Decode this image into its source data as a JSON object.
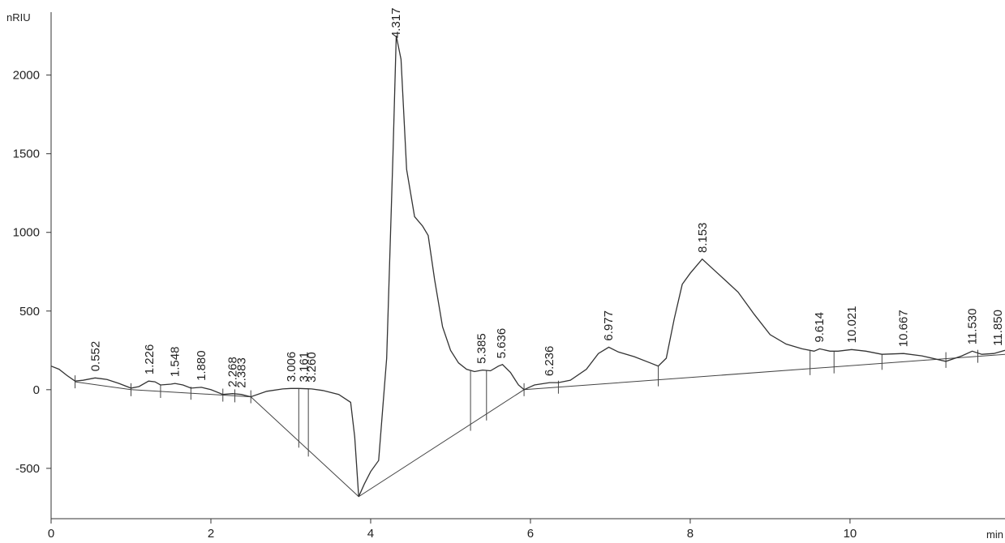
{
  "chart_data": {
    "type": "line",
    "y_label": "nRIU",
    "x_label": "min",
    "xlim": [
      0,
      11.94
    ],
    "ylim": [
      -820,
      2400
    ],
    "xticks": [
      0,
      2,
      4,
      6,
      8,
      10
    ],
    "yticks": [
      -500,
      0,
      500,
      1000,
      1500,
      2000
    ],
    "color": "#333333",
    "x": [
      0,
      0.1,
      0.2,
      0.3,
      0.4,
      0.55,
      0.7,
      0.85,
      1.0,
      1.1,
      1.22,
      1.3,
      1.37,
      1.5,
      1.55,
      1.65,
      1.75,
      1.88,
      2.0,
      2.15,
      2.27,
      2.38,
      2.5,
      2.7,
      2.9,
      3.0,
      3.1,
      3.26,
      3.4,
      3.6,
      3.75,
      3.8,
      3.85,
      3.92,
      4.0,
      4.1,
      4.2,
      4.28,
      4.32,
      4.38,
      4.45,
      4.55,
      4.65,
      4.72,
      4.8,
      4.9,
      5.0,
      5.1,
      5.2,
      5.3,
      5.4,
      5.5,
      5.6,
      5.65,
      5.75,
      5.85,
      5.92,
      6.05,
      6.24,
      6.35,
      6.5,
      6.7,
      6.85,
      6.98,
      7.1,
      7.3,
      7.5,
      7.6,
      7.7,
      7.8,
      7.9,
      8.0,
      8.15,
      8.3,
      8.45,
      8.6,
      8.8,
      9.0,
      9.2,
      9.4,
      9.55,
      9.62,
      9.75,
      9.85,
      10.02,
      10.2,
      10.4,
      10.67,
      10.9,
      11.2,
      11.4,
      11.53,
      11.65,
      11.8,
      11.94
    ],
    "values": [
      150,
      130,
      90,
      55,
      60,
      75,
      65,
      40,
      10,
      20,
      55,
      50,
      30,
      35,
      40,
      30,
      10,
      15,
      0,
      -30,
      -25,
      -30,
      -45,
      -10,
      5,
      8,
      8,
      5,
      -5,
      -30,
      -80,
      -300,
      -680,
      -600,
      -520,
      -450,
      200,
      1500,
      2250,
      2100,
      1400,
      1100,
      1040,
      980,
      700,
      400,
      250,
      170,
      130,
      115,
      125,
      120,
      150,
      160,
      110,
      30,
      0,
      30,
      45,
      45,
      60,
      130,
      230,
      270,
      240,
      210,
      170,
      150,
      200,
      450,
      670,
      740,
      830,
      760,
      690,
      620,
      480,
      350,
      290,
      260,
      245,
      260,
      245,
      245,
      255,
      245,
      225,
      230,
      215,
      180,
      215,
      245,
      225,
      230,
      250
    ],
    "baseline_x": [
      0.3,
      1.0,
      2.5,
      3.85,
      5.92,
      11.94
    ],
    "baseline_y": [
      50,
      0,
      -45,
      -680,
      0,
      225
    ],
    "boundaries": [
      0.3,
      1.0,
      1.37,
      1.75,
      2.15,
      2.3,
      2.5,
      3.1,
      3.22,
      5.25,
      5.45,
      5.92,
      6.35,
      7.6,
      9.5,
      9.8,
      10.4,
      11.2,
      11.6
    ],
    "peak_times": [
      0.552,
      1.226,
      1.548,
      1.88,
      2.268,
      2.383,
      3.006,
      3.161,
      3.26,
      4.317,
      5.385,
      5.636,
      6.236,
      6.977,
      8.153,
      9.614,
      10.021,
      10.667,
      11.53,
      11.85
    ],
    "peak_labels": [
      "0.552",
      "1.226",
      "1.548",
      "1.880",
      "2.268",
      "2.383",
      "3.006",
      "3.161",
      "3.260",
      "4.317",
      "5.385",
      "5.636",
      "6.236",
      "6.977",
      "8.153",
      "9.614",
      "10.021",
      "10.667",
      "11.530",
      "11.850"
    ]
  }
}
